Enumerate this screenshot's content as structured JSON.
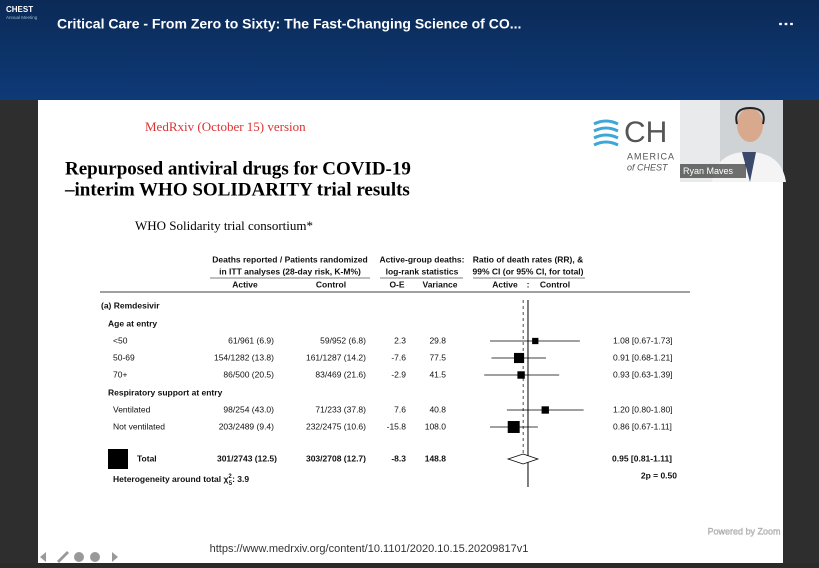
{
  "header": {
    "logo_line1": "CHEST",
    "logo_line2": "Annual Meeting",
    "title": "Critical Care - From Zero to Sixty: The Fast-Changing Science of CO...",
    "menu": "⋮"
  },
  "slide": {
    "note": "MedRxiv (October 15) version",
    "title": [
      "Repurposed antiviral drugs for COVID-19",
      "–interim WHO SOLIDARITY trial results"
    ],
    "author": "WHO Solidarity trial consortium*",
    "logo": {
      "mark": "CH",
      "line1": "AMERICA",
      "line2": "of CHEST"
    },
    "table": {
      "headers": {
        "deaths": [
          "Deaths reported / Patients randomized",
          "in ITT analyses (28-day risk, K-M%)"
        ],
        "active": "Active",
        "control": "Control",
        "logrank": [
          "Active-group deaths:",
          "log-rank statistics"
        ],
        "oe": "O-E",
        "variance": "Variance",
        "ratio": [
          "Ratio of death rates (RR), &",
          "99% CI (or 95% CI, for total)"
        ],
        "f_active": "Active",
        "f_sep": ":",
        "f_control": "Control"
      },
      "section": "(a) Remdesivir",
      "groups": [
        {
          "label": "Age at entry",
          "rows": [
            {
              "label": "<50",
              "active": "61/961 (6.9)",
              "control": "59/952 (6.8)",
              "oe": "2.3",
              "variance": "29.8",
              "rr": 1.08,
              "ci": [
                0.67,
                1.73
              ],
              "ci_text": "1.08 [0.67-1.73]"
            },
            {
              "label": "50-69",
              "active": "154/1282 (13.8)",
              "control": "161/1287 (14.2)",
              "oe": "-7.6",
              "variance": "77.5",
              "rr": 0.91,
              "ci": [
                0.68,
                1.21
              ],
              "ci_text": "0.91 [0.68-1.21]"
            },
            {
              "label": "70+",
              "active": "86/500 (20.5)",
              "control": "83/469 (21.6)",
              "oe": "-2.9",
              "variance": "41.5",
              "rr": 0.93,
              "ci": [
                0.63,
                1.39
              ],
              "ci_text": "0.93 [0.63-1.39]"
            }
          ]
        },
        {
          "label": "Respiratory support at entry",
          "rows": [
            {
              "label": "Ventilated",
              "active": "98/254 (43.0)",
              "control": "71/233 (37.8)",
              "oe": "7.6",
              "variance": "40.8",
              "rr": 1.2,
              "ci": [
                0.8,
                1.8
              ],
              "ci_text": "1.20 [0.80-1.80]"
            },
            {
              "label": "Not ventilated",
              "active": "203/2489 (9.4)",
              "control": "232/2475 (10.6)",
              "oe": "-15.8",
              "variance": "108.0",
              "rr": 0.86,
              "ci": [
                0.67,
                1.11
              ],
              "ci_text": "0.86 [0.67-1.11]"
            }
          ]
        }
      ],
      "total": {
        "label": "Total",
        "active": "301/2743 (12.5)",
        "control": "303/2708 (12.7)",
        "oe": "-8.3",
        "variance": "148.8",
        "rr": 0.95,
        "ci": [
          0.81,
          1.11
        ],
        "ci_text": "0.95 [0.81-1.11]"
      },
      "heterogeneity": [
        "Heterogeneity around total χ",
        "2",
        "5",
        ": 3.9"
      ],
      "p": "2p = 0.50"
    },
    "forest": {
      "scale": "log",
      "xlim": [
        0.3,
        3
      ],
      "ref": 1
    },
    "url": "https://www.medrxiv.org/content/10.1101/2020.10.15.20209817v1"
  },
  "video": {
    "name": "Ryan Maves"
  },
  "footer": {
    "powered": "Powered by Zoom"
  }
}
